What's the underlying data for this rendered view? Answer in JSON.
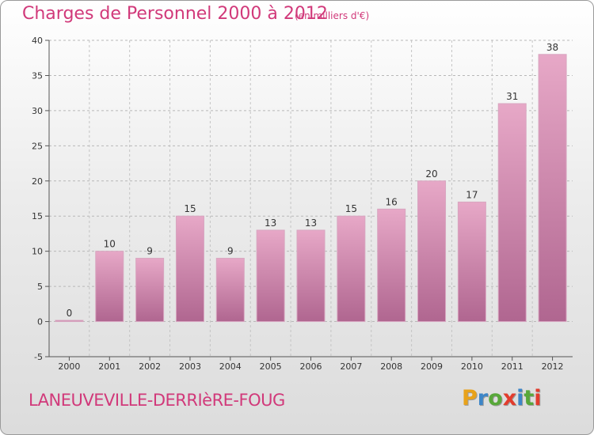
{
  "header": {
    "title": "Charges de Personnel 2000 à 2012",
    "subtitle": "(en milliers d'€)"
  },
  "footer": {
    "town": "LANEUVEVILLE-DERRIèRE-FOUG",
    "logo_letters": [
      "P",
      "r",
      "o",
      "x",
      "i",
      "t",
      "i"
    ],
    "logo_colors": [
      "#e8a21a",
      "#3d86c8",
      "#58a83a",
      "#e23c2d",
      "#3d86c8",
      "#58a83a",
      "#e23c2d"
    ]
  },
  "chart_data": {
    "type": "bar",
    "categories": [
      "2000",
      "2001",
      "2002",
      "2003",
      "2004",
      "2005",
      "2006",
      "2007",
      "2008",
      "2009",
      "2010",
      "2011",
      "2012"
    ],
    "values": [
      0,
      10,
      9,
      15,
      9,
      13,
      13,
      15,
      16,
      20,
      17,
      31,
      38
    ],
    "data_labels": [
      "0",
      "10",
      "9",
      "15",
      "9",
      "13",
      "13",
      "15",
      "16",
      "20",
      "17",
      "31",
      "38"
    ],
    "ylim": [
      -5,
      40
    ],
    "yticks": [
      -5,
      0,
      5,
      10,
      15,
      20,
      25,
      30,
      35,
      40
    ],
    "ytick_labels": [
      "-5",
      "0",
      "5",
      "10",
      "15",
      "20",
      "25",
      "30",
      "35",
      "40"
    ],
    "grid": true,
    "bar_color": "#c46f9c",
    "accent_color": "#d1397a"
  }
}
